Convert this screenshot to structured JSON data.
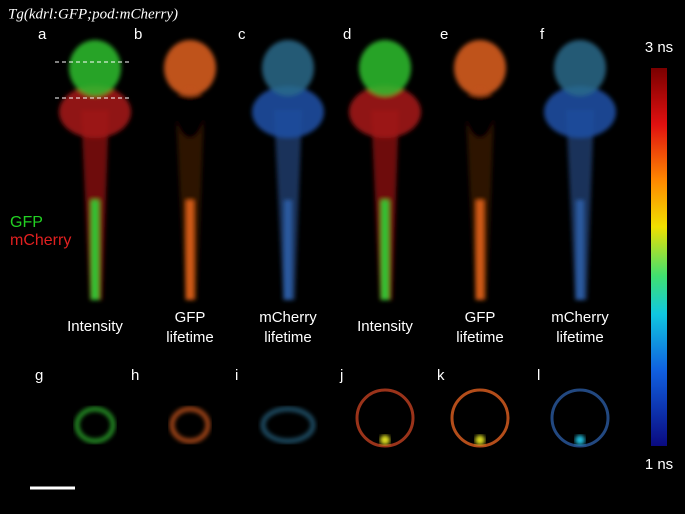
{
  "title": "Tg(kdrl:GFP;pod:mCherry)",
  "panels": [
    {
      "letter": "a",
      "caption": [
        "Intensity"
      ]
    },
    {
      "letter": "b",
      "caption": [
        "GFP",
        "lifetime"
      ]
    },
    {
      "letter": "c",
      "caption": [
        "mCherry",
        "lifetime"
      ]
    },
    {
      "letter": "d",
      "caption": [
        "Intensity"
      ]
    },
    {
      "letter": "e",
      "caption": [
        "GFP",
        "lifetime"
      ]
    },
    {
      "letter": "f",
      "caption": [
        "mCherry",
        "lifetime"
      ]
    }
  ],
  "legend": {
    "gfp": "GFP",
    "mcherry": "mCherry"
  },
  "sections": [
    {
      "letter": "g"
    },
    {
      "letter": "h"
    },
    {
      "letter": "i"
    },
    {
      "letter": "j"
    },
    {
      "letter": "k"
    },
    {
      "letter": "l"
    }
  ],
  "colorbar": {
    "max_label": "3 ns",
    "min_label": "1 ns"
  }
}
